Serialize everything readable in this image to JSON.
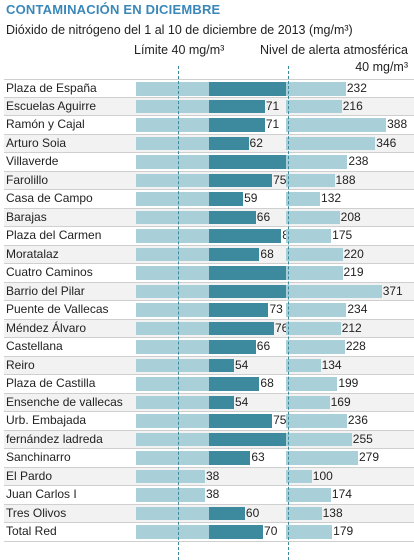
{
  "title": "CONTAMINACIÓN EN DICIEMBRE",
  "subtitle": "Dióxido de nitrógeno del 1 al 10 de diciembre de 2013 (mg/m³)",
  "headers": {
    "limit": "Límite 40 mg/m³",
    "alert_line1": "Nivel de alerta atmosférica",
    "alert_line2": "40 mg/m³"
  },
  "colors": {
    "title": "#3a87b9",
    "bar_light": "#a9cfd8",
    "bar_dark": "#3d8a9e",
    "guide_line": "#3d8a9e"
  },
  "chart_data": {
    "type": "bar",
    "title": "CONTAMINACIÓN EN DICIEMBRE",
    "subtitle": "Dióxido de nitrógeno del 1 al 10 de diciembre de 2013 (mg/m³)",
    "unit": "mg/m³",
    "limit_value": 40,
    "categories": [
      "Plaza de España",
      "Escuelas Aguirre",
      "Ramón y Cajal",
      "Arturo Soia",
      "Villaverde",
      "Farolillo",
      "Casa de Campo",
      "Barajas",
      "Plaza del Carmen",
      "Moratalaz",
      "Cuatro Caminos",
      "Barrio del Pilar",
      "Puente de Vallecas",
      "Méndez Álvaro",
      "Castellana",
      "Reiro",
      "Plaza de Castilla",
      "Ensenche de vallecas",
      "Urb. Embajada",
      "fernández ladreda",
      "Sanchinarro",
      "El Pardo",
      "Juan Carlos I",
      "Tres Olivos",
      "Total Red"
    ],
    "series": [
      {
        "name": "Límite 40 mg/m³",
        "values": [
          89,
          71,
          71,
          62,
          100,
          75,
          59,
          66,
          80,
          68,
          84,
          93,
          73,
          76,
          66,
          54,
          68,
          54,
          75,
          95,
          63,
          38,
          38,
          60,
          70
        ]
      },
      {
        "name": "Nivel de alerta atmosférica 40 mg/m³",
        "values": [
          232,
          216,
          388,
          346,
          238,
          188,
          132,
          208,
          175,
          220,
          219,
          371,
          234,
          212,
          228,
          134,
          199,
          169,
          236,
          255,
          279,
          100,
          174,
          138,
          179
        ]
      }
    ]
  }
}
